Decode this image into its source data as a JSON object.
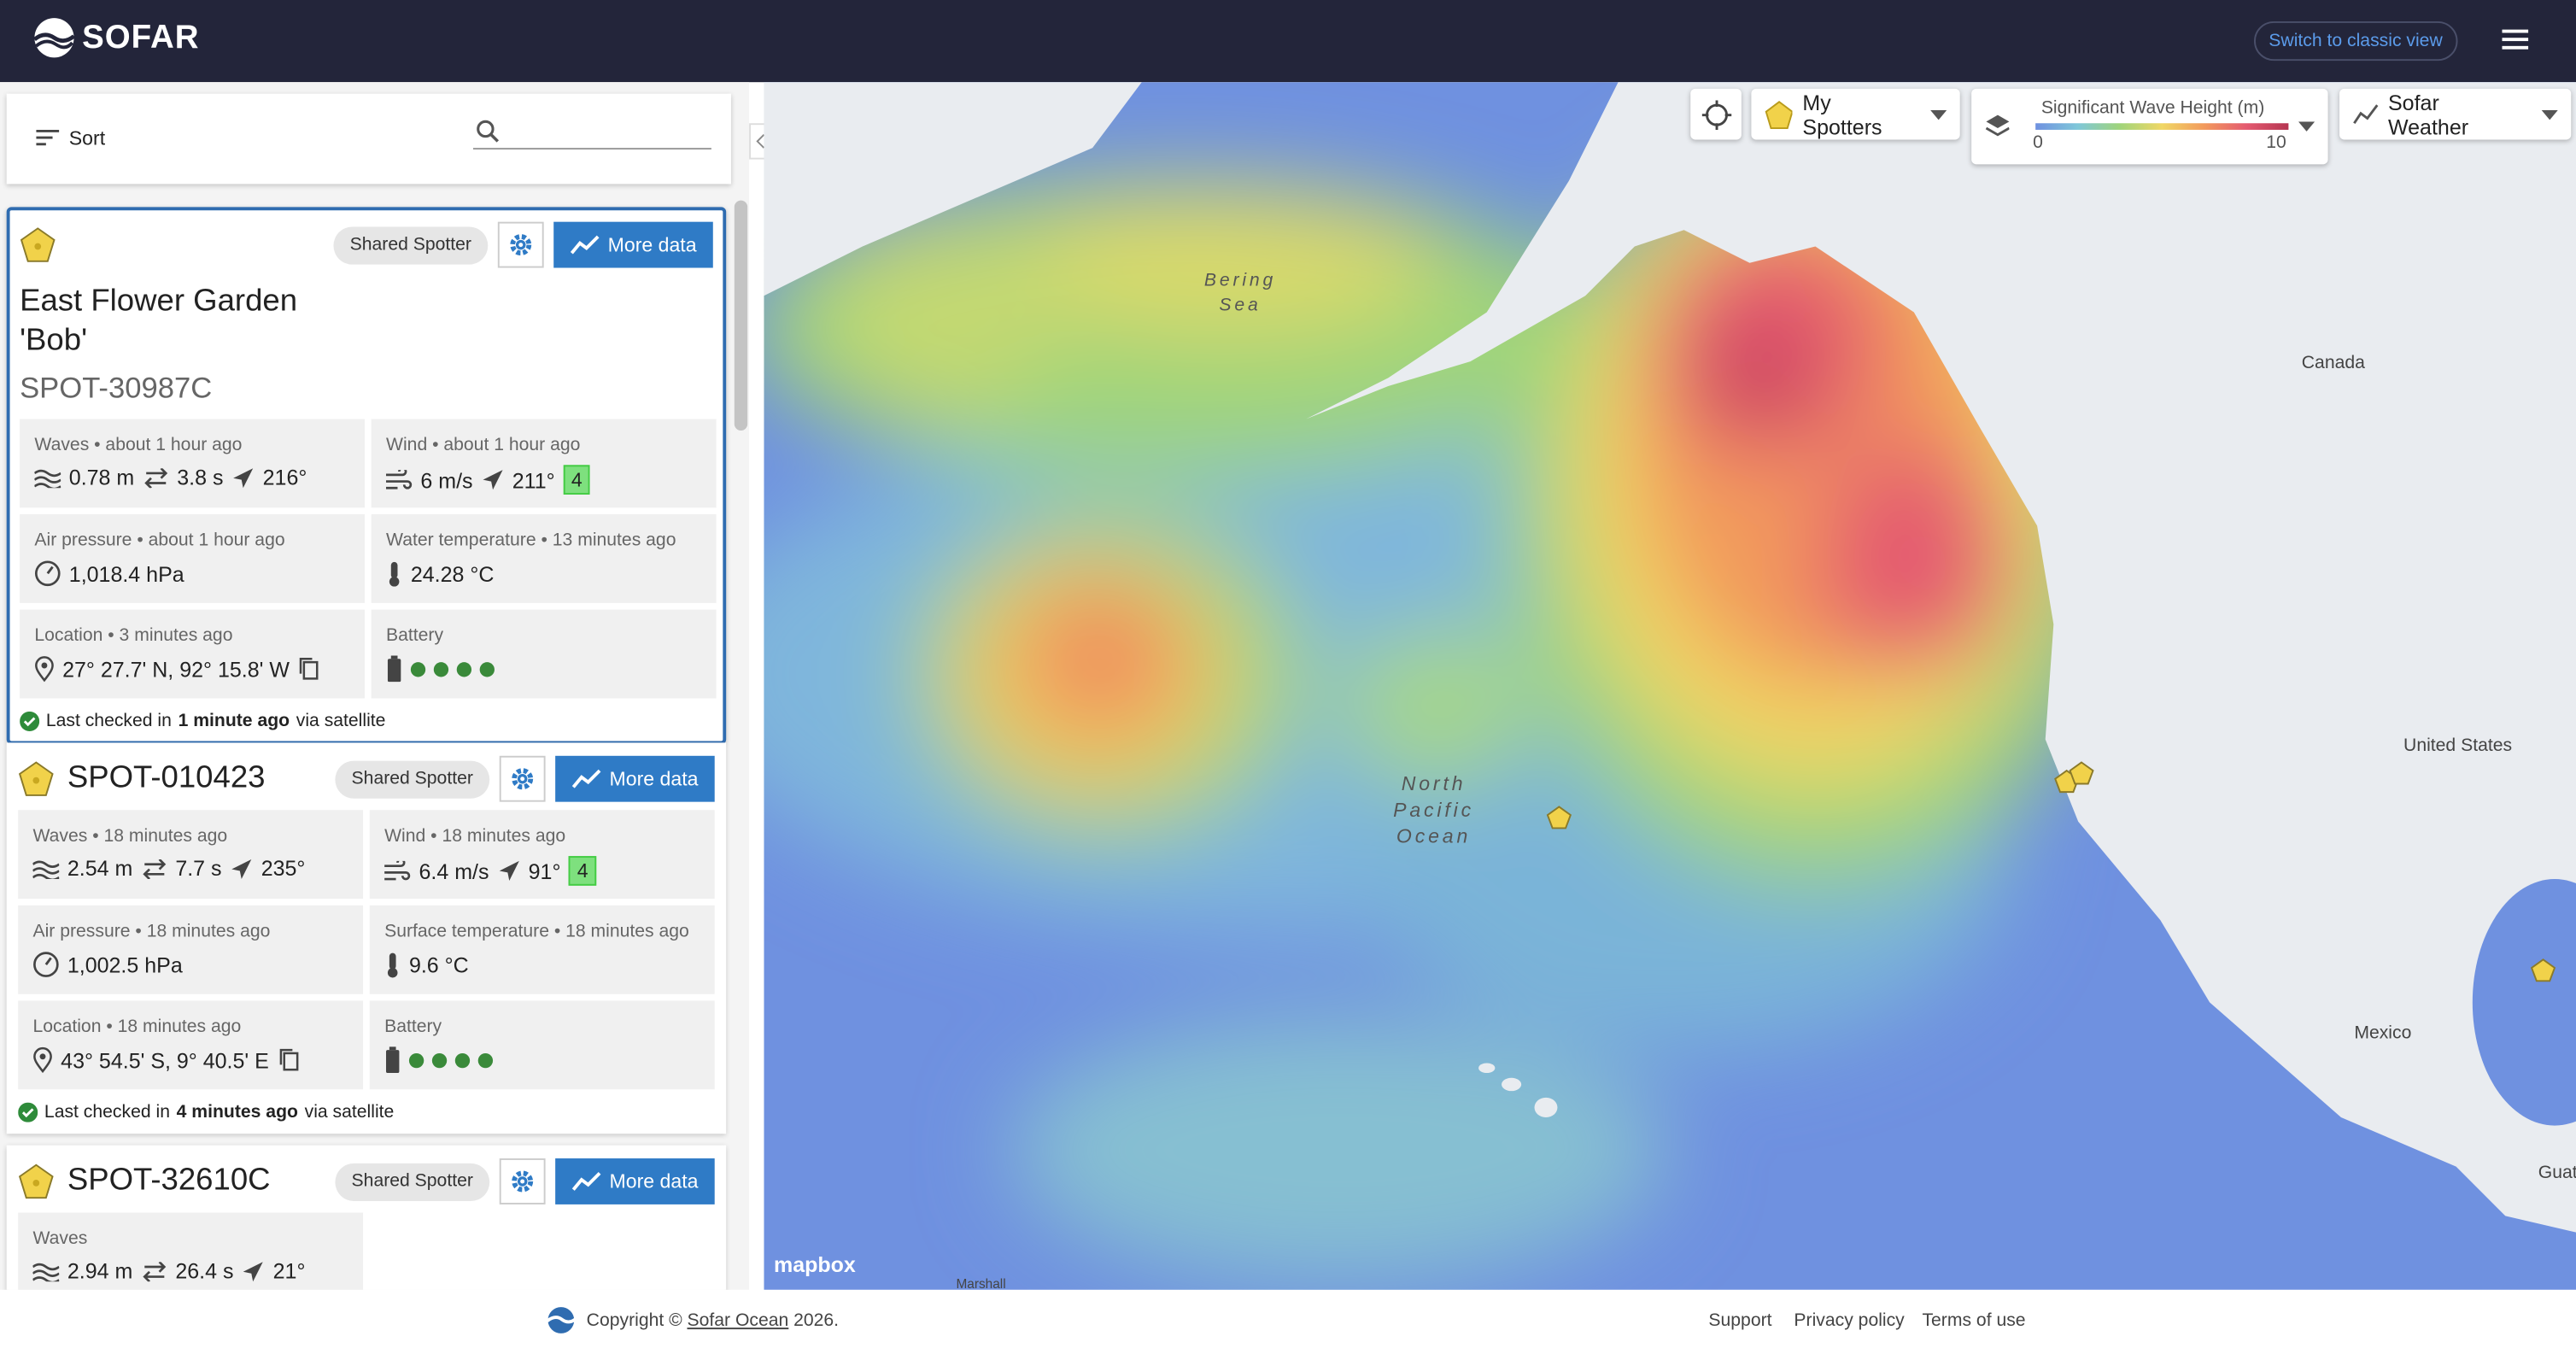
{
  "header": {
    "logo": "SOFAR",
    "switch_button": "Switch to classic view"
  },
  "sidebar": {
    "sort": "Sort",
    "cards": [
      {
        "badge": "Shared Spotter",
        "more_button": "More data",
        "name": "East Flower Garden 'Bob'",
        "id": "SPOT-30987C",
        "waves": {
          "header": "Waves • about 1 hour ago",
          "height": "0.78 m",
          "period": "3.8 s",
          "direction": "216°"
        },
        "wind": {
          "header": "Wind • about 1 hour ago",
          "speed": "6 m/s",
          "direction": "211°",
          "beaufort": "4"
        },
        "pressure": {
          "header": "Air pressure • about 1 hour ago",
          "value": "1,018.4 hPa"
        },
        "temperature": {
          "header": "Water temperature • 13 minutes ago",
          "value": "24.28 °C"
        },
        "location": {
          "header": "Location • 3 minutes ago",
          "value": "27° 27.7' N, 92° 15.8' W"
        },
        "battery": {
          "header": "Battery"
        },
        "last_checked": {
          "prefix": "Last checked in",
          "when": "1 minute ago",
          "suffix": "via satellite"
        }
      },
      {
        "badge": "Shared Spotter",
        "more_button": "More data",
        "id": "SPOT-010423",
        "waves": {
          "header": "Waves • 18 minutes ago",
          "height": "2.54 m",
          "period": "7.7 s",
          "direction": "235°"
        },
        "wind": {
          "header": "Wind • 18 minutes ago",
          "speed": "6.4 m/s",
          "direction": "91°",
          "beaufort": "4"
        },
        "pressure": {
          "header": "Air pressure • 18 minutes ago",
          "value": "1,002.5 hPa"
        },
        "temperature": {
          "header": "Surface temperature • 18 minutes ago",
          "value": "9.6 °C"
        },
        "location": {
          "header": "Location • 18 minutes ago",
          "value": "43° 54.5' S, 9° 40.5' E"
        },
        "battery": {
          "header": "Battery"
        },
        "last_checked": {
          "prefix": "Last checked in",
          "when": "4 minutes ago",
          "suffix": "via satellite"
        }
      },
      {
        "badge": "Shared Spotter",
        "more_button": "More data",
        "id": "SPOT-32610C",
        "waves": {
          "header": "Waves",
          "height": "2.94 m",
          "period": "26.4 s",
          "direction": "21°"
        }
      }
    ]
  },
  "map": {
    "my_spotters": "My Spotters",
    "legend": {
      "title": "Significant Wave Height (m)",
      "min": "0",
      "max": "10"
    },
    "weather": "Sofar Weather",
    "labels": {
      "bering": "Bering\nSea",
      "canada": "Canada",
      "us": "United States",
      "pacific": "North\nPacific\nOcean",
      "mexico": "Mexico",
      "guate": "Guate",
      "marshall": "Marshall"
    },
    "attribution": "mapbox"
  },
  "footer": {
    "copyright": "Copyright ©",
    "company": "Sofar Ocean",
    "year": "2026.",
    "links": [
      "Support",
      "Privacy policy",
      "Terms of use"
    ]
  }
}
